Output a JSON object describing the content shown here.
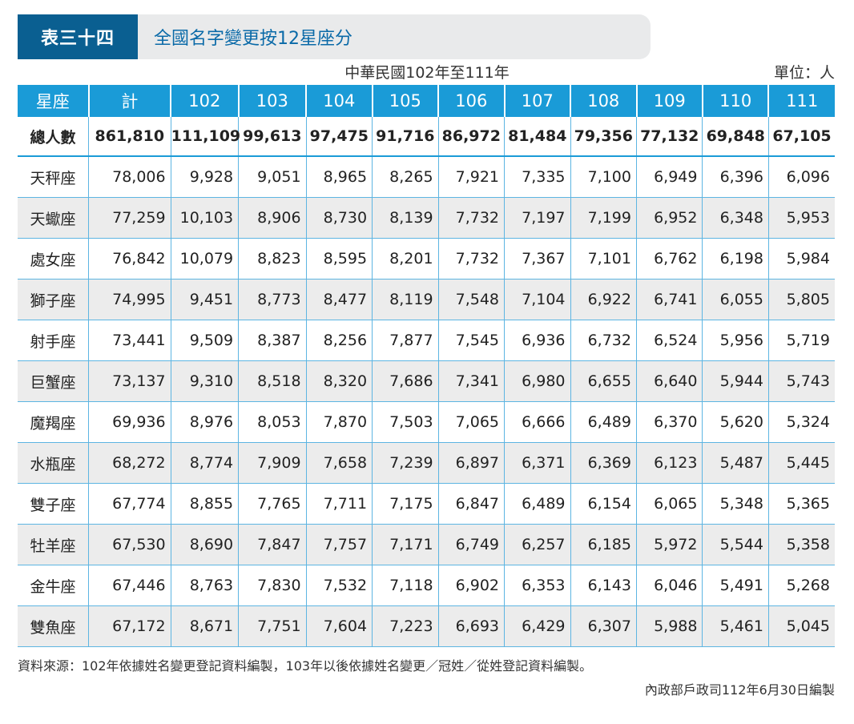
{
  "title": {
    "tag": "表三十四",
    "text": "全國名字變更按12星座分"
  },
  "subtitle": "中華民國102年至111年",
  "unit": "單位：人",
  "table": {
    "headers": [
      "星座",
      "計",
      "102",
      "103",
      "104",
      "105",
      "106",
      "107",
      "108",
      "109",
      "110",
      "111"
    ],
    "total_row": [
      "總人數",
      "861,810",
      "111,109",
      "99,613",
      "97,475",
      "91,716",
      "86,972",
      "81,484",
      "79,356",
      "77,132",
      "69,848",
      "67,105"
    ],
    "rows": [
      [
        "天秤座",
        "78,006",
        "9,928",
        "9,051",
        "8,965",
        "8,265",
        "7,921",
        "7,335",
        "7,100",
        "6,949",
        "6,396",
        "6,096"
      ],
      [
        "天蠍座",
        "77,259",
        "10,103",
        "8,906",
        "8,730",
        "8,139",
        "7,732",
        "7,197",
        "7,199",
        "6,952",
        "6,348",
        "5,953"
      ],
      [
        "處女座",
        "76,842",
        "10,079",
        "8,823",
        "8,595",
        "8,201",
        "7,732",
        "7,367",
        "7,101",
        "6,762",
        "6,198",
        "5,984"
      ],
      [
        "獅子座",
        "74,995",
        "9,451",
        "8,773",
        "8,477",
        "8,119",
        "7,548",
        "7,104",
        "6,922",
        "6,741",
        "6,055",
        "5,805"
      ],
      [
        "射手座",
        "73,441",
        "9,509",
        "8,387",
        "8,256",
        "7,877",
        "7,545",
        "6,936",
        "6,732",
        "6,524",
        "5,956",
        "5,719"
      ],
      [
        "巨蟹座",
        "73,137",
        "9,310",
        "8,518",
        "8,320",
        "7,686",
        "7,341",
        "6,980",
        "6,655",
        "6,640",
        "5,944",
        "5,743"
      ],
      [
        "魔羯座",
        "69,936",
        "8,976",
        "8,053",
        "7,870",
        "7,503",
        "7,065",
        "6,666",
        "6,489",
        "6,370",
        "5,620",
        "5,324"
      ],
      [
        "水瓶座",
        "68,272",
        "8,774",
        "7,909",
        "7,658",
        "7,239",
        "6,897",
        "6,371",
        "6,369",
        "6,123",
        "5,487",
        "5,445"
      ],
      [
        "雙子座",
        "67,774",
        "8,855",
        "7,765",
        "7,711",
        "7,175",
        "6,847",
        "6,489",
        "6,154",
        "6,065",
        "5,348",
        "5,365"
      ],
      [
        "牡羊座",
        "67,530",
        "8,690",
        "7,847",
        "7,757",
        "7,171",
        "6,749",
        "6,257",
        "6,185",
        "5,972",
        "5,544",
        "5,358"
      ],
      [
        "金牛座",
        "67,446",
        "8,763",
        "7,830",
        "7,532",
        "7,118",
        "6,902",
        "6,353",
        "6,143",
        "6,046",
        "5,491",
        "5,268"
      ],
      [
        "雙魚座",
        "67,172",
        "8,671",
        "7,751",
        "7,604",
        "7,223",
        "6,693",
        "6,429",
        "6,307",
        "5,988",
        "5,461",
        "5,045"
      ]
    ]
  },
  "footer": {
    "source": "資料來源：102年依據姓名變更登記資料編製，103年以後依據姓名變更／冠姓／從姓登記資料編製。",
    "credit": "內政部戶政司112年6月30日編製"
  },
  "colors": {
    "tag_bg": "#0a5f91",
    "header_bg": "#1a9bd7",
    "title_text": "#0a6aa8",
    "stripe": "#ececec"
  }
}
